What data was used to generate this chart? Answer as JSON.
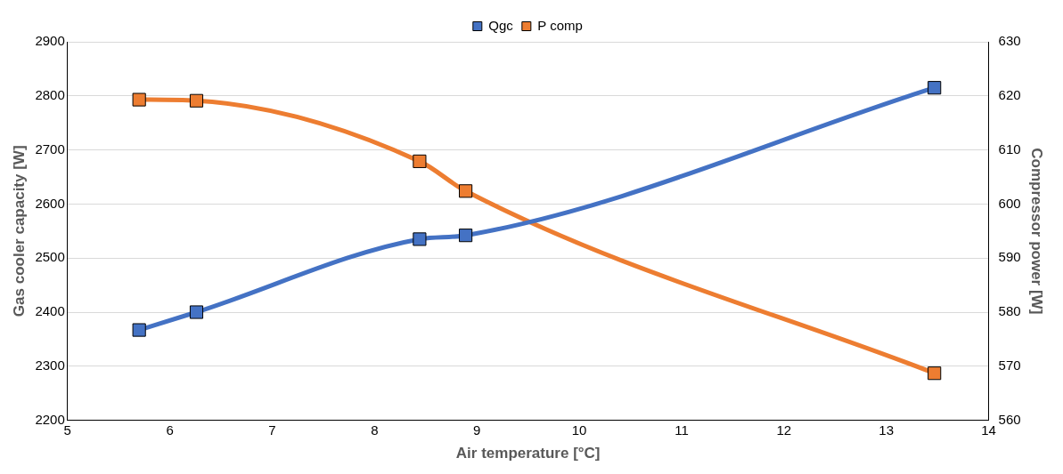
{
  "chart_data": {
    "type": "line",
    "xlabel": "Air temperature [°C]",
    "ylabel": "Gas cooler capacity [W]",
    "y2label": "Compressor power [W]",
    "x": [
      5.7,
      6.26,
      8.44,
      8.89,
      13.47
    ],
    "series": [
      {
        "name": "Qgc",
        "color": "#4472c4",
        "values": [
          2367,
          2400,
          2535,
          2542,
          2815
        ]
      },
      {
        "name": "P comp",
        "color": "#ed7d31",
        "axis": "y2",
        "values": [
          619.3,
          619.1,
          607.9,
          602.4,
          568.7
        ]
      }
    ],
    "xlim": [
      5,
      14
    ],
    "xticks": [
      5,
      6,
      7,
      8,
      9,
      10,
      11,
      12,
      13,
      14
    ],
    "ylim": [
      2200,
      2900
    ],
    "yticks": [
      2200,
      2300,
      2400,
      2500,
      2600,
      2700,
      2800,
      2900
    ],
    "y2lim": [
      560,
      630
    ],
    "y2ticks": [
      560,
      570,
      580,
      590,
      600,
      610,
      620,
      630
    ],
    "grid": "y",
    "legend": "top",
    "marker": "square",
    "line_style": "solid"
  }
}
